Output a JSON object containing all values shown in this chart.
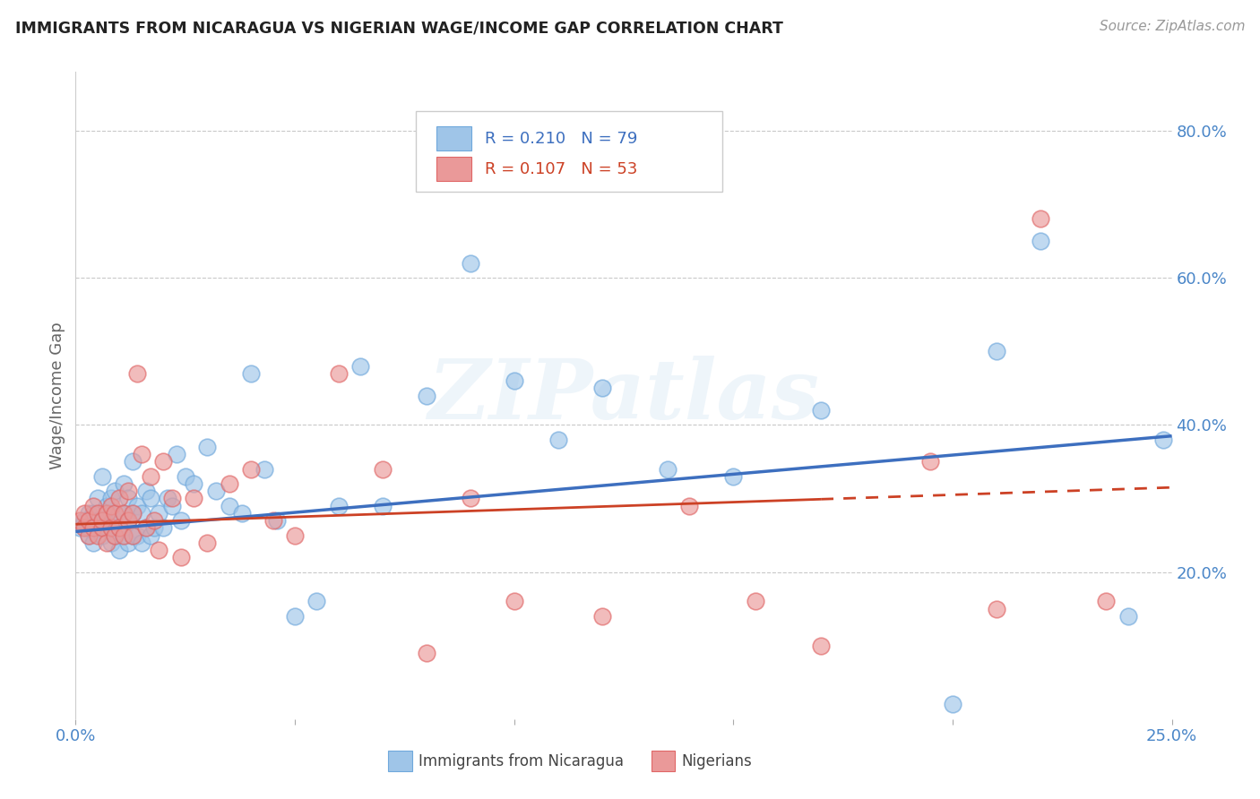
{
  "title": "IMMIGRANTS FROM NICARAGUA VS NIGERIAN WAGE/INCOME GAP CORRELATION CHART",
  "source": "Source: ZipAtlas.com",
  "ylabel": "Wage/Income Gap",
  "yticks_right": [
    0.2,
    0.4,
    0.6,
    0.8
  ],
  "ytick_labels_right": [
    "20.0%",
    "40.0%",
    "60.0%",
    "80.0%"
  ],
  "xmin": 0.0,
  "xmax": 0.25,
  "ymin": 0.0,
  "ymax": 0.88,
  "series1_label": "Immigrants from Nicaragua",
  "series1_R": "0.210",
  "series1_N": "79",
  "series1_color": "#9fc5e8",
  "series1_edge": "#6fa8dc",
  "series1_line": "#3d6fbf",
  "series2_label": "Nigerians",
  "series2_R": "0.107",
  "series2_N": "53",
  "series2_color": "#ea9999",
  "series2_edge": "#e06666",
  "series2_line": "#cc4125",
  "background_color": "#ffffff",
  "grid_color": "#bbbbbb",
  "title_color": "#222222",
  "source_color": "#999999",
  "watermark": "ZIPatlas",
  "blue_x": [
    0.001,
    0.002,
    0.002,
    0.003,
    0.003,
    0.003,
    0.004,
    0.004,
    0.004,
    0.005,
    0.005,
    0.005,
    0.006,
    0.006,
    0.006,
    0.007,
    0.007,
    0.007,
    0.008,
    0.008,
    0.008,
    0.008,
    0.009,
    0.009,
    0.009,
    0.01,
    0.01,
    0.01,
    0.011,
    0.011,
    0.011,
    0.012,
    0.012,
    0.012,
    0.013,
    0.013,
    0.013,
    0.014,
    0.014,
    0.015,
    0.015,
    0.016,
    0.016,
    0.017,
    0.017,
    0.018,
    0.019,
    0.02,
    0.021,
    0.022,
    0.023,
    0.024,
    0.025,
    0.027,
    0.03,
    0.032,
    0.035,
    0.038,
    0.04,
    0.043,
    0.046,
    0.05,
    0.055,
    0.06,
    0.065,
    0.07,
    0.08,
    0.09,
    0.1,
    0.11,
    0.12,
    0.135,
    0.15,
    0.17,
    0.2,
    0.21,
    0.22,
    0.24,
    0.248
  ],
  "blue_y": [
    0.26,
    0.26,
    0.27,
    0.25,
    0.26,
    0.28,
    0.24,
    0.27,
    0.28,
    0.26,
    0.27,
    0.3,
    0.25,
    0.27,
    0.33,
    0.26,
    0.28,
    0.29,
    0.24,
    0.26,
    0.28,
    0.3,
    0.25,
    0.27,
    0.31,
    0.23,
    0.26,
    0.28,
    0.25,
    0.28,
    0.32,
    0.24,
    0.27,
    0.3,
    0.25,
    0.28,
    0.35,
    0.25,
    0.29,
    0.24,
    0.28,
    0.26,
    0.31,
    0.25,
    0.3,
    0.26,
    0.28,
    0.26,
    0.3,
    0.29,
    0.36,
    0.27,
    0.33,
    0.32,
    0.37,
    0.31,
    0.29,
    0.28,
    0.47,
    0.34,
    0.27,
    0.14,
    0.16,
    0.29,
    0.48,
    0.29,
    0.44,
    0.62,
    0.46,
    0.38,
    0.45,
    0.34,
    0.33,
    0.42,
    0.02,
    0.5,
    0.65,
    0.14,
    0.38
  ],
  "pink_x": [
    0.001,
    0.002,
    0.002,
    0.003,
    0.003,
    0.004,
    0.004,
    0.005,
    0.005,
    0.006,
    0.006,
    0.007,
    0.007,
    0.008,
    0.008,
    0.009,
    0.009,
    0.01,
    0.01,
    0.011,
    0.011,
    0.012,
    0.012,
    0.013,
    0.013,
    0.014,
    0.015,
    0.016,
    0.017,
    0.018,
    0.019,
    0.02,
    0.022,
    0.024,
    0.027,
    0.03,
    0.035,
    0.04,
    0.045,
    0.05,
    0.06,
    0.07,
    0.08,
    0.09,
    0.1,
    0.12,
    0.14,
    0.155,
    0.17,
    0.195,
    0.21,
    0.22,
    0.235
  ],
  "pink_y": [
    0.27,
    0.26,
    0.28,
    0.25,
    0.27,
    0.26,
    0.29,
    0.25,
    0.28,
    0.26,
    0.27,
    0.24,
    0.28,
    0.26,
    0.29,
    0.25,
    0.28,
    0.26,
    0.3,
    0.25,
    0.28,
    0.27,
    0.31,
    0.25,
    0.28,
    0.47,
    0.36,
    0.26,
    0.33,
    0.27,
    0.23,
    0.35,
    0.3,
    0.22,
    0.3,
    0.24,
    0.32,
    0.34,
    0.27,
    0.25,
    0.47,
    0.34,
    0.09,
    0.3,
    0.16,
    0.14,
    0.29,
    0.16,
    0.1,
    0.35,
    0.15,
    0.68,
    0.16
  ],
  "blue_trendline_x": [
    0.0,
    0.25
  ],
  "blue_trendline_y": [
    0.255,
    0.385
  ],
  "pink_trendline_x": [
    0.0,
    0.25
  ],
  "pink_trendline_y": [
    0.265,
    0.315
  ]
}
